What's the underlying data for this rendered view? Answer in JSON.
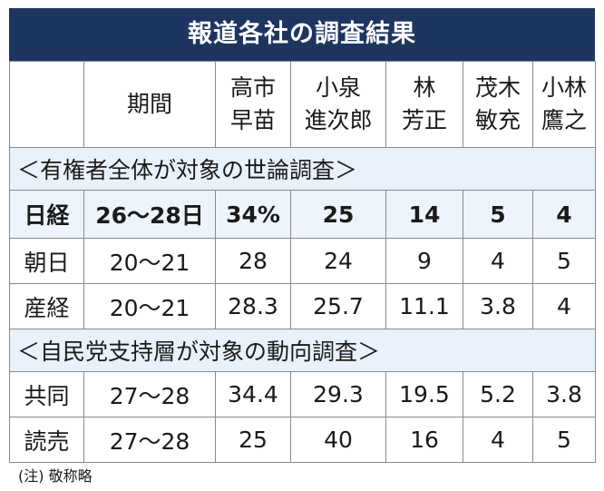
{
  "title": "報道各社の調査結果",
  "headers": {
    "period": "期間",
    "candidates": [
      {
        "line1": "高市",
        "line2": "早苗"
      },
      {
        "line1": "小泉",
        "line2": "進次郎"
      },
      {
        "line1": "林",
        "line2": "芳正"
      },
      {
        "line1": "茂木",
        "line2": "敏充"
      },
      {
        "line1": "小林",
        "line2": "鷹之"
      }
    ]
  },
  "sections": [
    {
      "label": "＜有権者全体が対象の世論調査＞",
      "rows": [
        {
          "outlet": "日経",
          "period": "26〜28日",
          "values": [
            "34%",
            "25",
            "14",
            "5",
            "4"
          ]
        },
        {
          "outlet": "朝日",
          "period": "20〜21",
          "values": [
            "28",
            "24",
            "9",
            "4",
            "5"
          ]
        },
        {
          "outlet": "産経",
          "period": "20〜21",
          "values": [
            "28.3",
            "25.7",
            "11.1",
            "3.8",
            "4"
          ]
        }
      ]
    },
    {
      "label": "＜自民党支持層が対象の動向調査＞",
      "rows": [
        {
          "outlet": "共同",
          "period": "27〜28",
          "values": [
            "34.4",
            "29.3",
            "19.5",
            "5.2",
            "3.8"
          ]
        },
        {
          "outlet": "読売",
          "period": "27〜28",
          "values": [
            "25",
            "40",
            "16",
            "4",
            "5"
          ]
        }
      ]
    }
  ],
  "note": "(注) 敬称略"
}
